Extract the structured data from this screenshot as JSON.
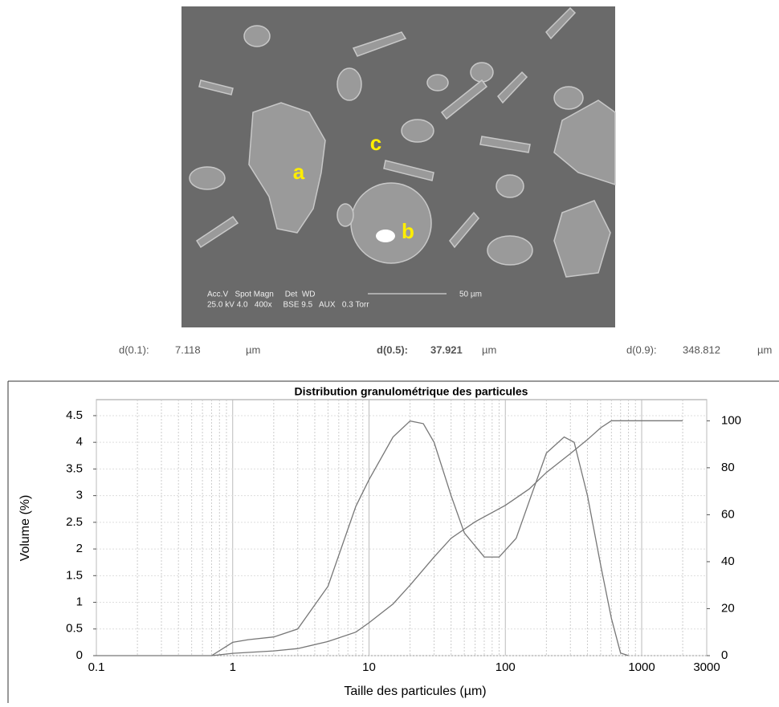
{
  "image": {
    "labels": [
      "a",
      "b",
      "c"
    ],
    "info_line1": "Acc.V   Spot Magn     Det  WD",
    "info_line2": "25.0 kV 4.0   400x     BSE 9.5   AUX   0.3 Torr",
    "scale": "50 µm"
  },
  "summary": [
    {
      "label": "d(0.1):",
      "value": "7.118",
      "unit": "µm"
    },
    {
      "label": "d(0.5):",
      "value": "37.921",
      "unit": "µm"
    },
    {
      "label": "d(0.9):",
      "value": "348.812",
      "unit": "µm"
    }
  ],
  "chart_data": {
    "type": "line",
    "title": "Distribution granulométrique des particules",
    "x_label": "Taille des particules (µm)",
    "y_label": "Volume (%)",
    "log_x": true,
    "grid": true,
    "xlim": [
      0.1,
      3000
    ],
    "xticks": [
      0.1,
      1,
      10,
      100,
      1000,
      3000
    ],
    "ylim": [
      0,
      4.8
    ],
    "yticks": [
      0,
      0.5,
      1,
      1.5,
      2,
      2.5,
      3,
      3.5,
      4,
      4.5
    ],
    "y2lim": [
      0,
      109
    ],
    "y2ticks": [
      0,
      20,
      40,
      60,
      80,
      100
    ],
    "series": [
      {
        "color": "#777777",
        "axis": "y",
        "x": [
          0.1,
          0.7,
          1,
          1.3,
          2,
          3,
          5,
          8,
          10,
          15,
          20,
          25,
          30,
          40,
          50,
          70,
          90,
          120,
          150,
          200,
          270,
          320,
          400,
          500,
          600,
          700,
          800
        ],
        "values": [
          0,
          0,
          0.25,
          0.3,
          0.35,
          0.5,
          1.3,
          2.8,
          3.3,
          4.1,
          4.4,
          4.35,
          4.0,
          3.0,
          2.3,
          1.85,
          1.85,
          2.2,
          2.9,
          3.8,
          4.1,
          4.0,
          3.0,
          1.7,
          0.7,
          0.05,
          0
        ]
      },
      {
        "color": "#777777",
        "axis": "y2",
        "x": [
          0.7,
          1,
          2,
          3,
          5,
          8,
          10,
          15,
          20,
          30,
          40,
          60,
          100,
          150,
          200,
          300,
          400,
          500,
          600,
          2000
        ],
        "values": [
          0,
          1,
          2,
          3,
          6,
          10,
          14,
          22,
          30,
          42,
          50,
          57,
          64,
          71,
          78,
          86,
          92,
          97,
          100,
          100
        ]
      }
    ]
  }
}
